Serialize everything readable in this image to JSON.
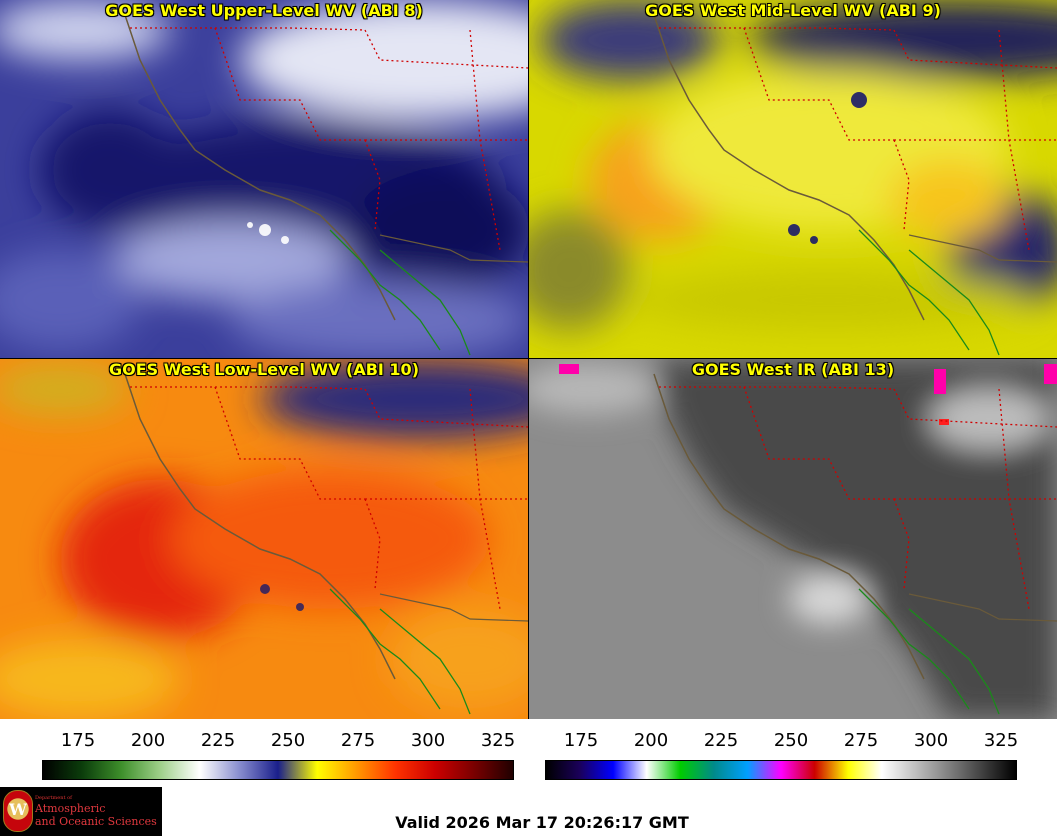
{
  "panels": [
    {
      "id": "p1",
      "title": "GOES West Upper-Level WV (ABI 8)",
      "bg": "#2a2f8c",
      "light": "#d8dcf0",
      "dark": "#10125c",
      "hot": "#9aa0d8"
    },
    {
      "id": "p2",
      "title": "GOES West Mid-Level WV (ABI 9)",
      "bg": "#e0e000",
      "light": "#f5f57a",
      "dark": "#2a2a7c",
      "hot": "#f7a11a"
    },
    {
      "id": "p3",
      "title": "GOES West Low-Level WV (ABI 10)",
      "bg": "#f57a10",
      "light": "#f7c51a",
      "dark": "#e8400c",
      "hot": "#e23a0a"
    },
    {
      "id": "p4",
      "title": "GOES West IR (ABI 13)",
      "bg": "#8a8a8a",
      "light": "#c8c8c8",
      "dark": "#444444",
      "hot": "#555555"
    }
  ],
  "colorbars": {
    "wv": {
      "ticks": [
        "175",
        "200",
        "225",
        "250",
        "275",
        "300",
        "325"
      ],
      "stops": [
        "#000000",
        "#0b3d0b",
        "#3e8f2b",
        "#9fd08a",
        "#ffffff",
        "#8a8fd0",
        "#1a1f8c",
        "#ffff00",
        "#ff9900",
        "#ff3300",
        "#cc0000",
        "#7a0000",
        "#200000"
      ]
    },
    "ir": {
      "ticks": [
        "175",
        "200",
        "225",
        "250",
        "275",
        "300",
        "325"
      ],
      "stops": [
        "#000000",
        "#1a005a",
        "#0000ff",
        "#ffffff",
        "#00cc00",
        "#008a8a",
        "#00a0ff",
        "#ff00ff",
        "#cc0000",
        "#ffff00",
        "#ffffff",
        "#c0c0c0",
        "#808080",
        "#404040",
        "#000000"
      ]
    }
  },
  "logo": {
    "seal_letter": "W",
    "dept": "Department of",
    "line1": "Atmospheric",
    "line2": "and Oceanic Sciences"
  },
  "valid_text": "Valid 2026 Mar 17 20:26:17 GMT"
}
